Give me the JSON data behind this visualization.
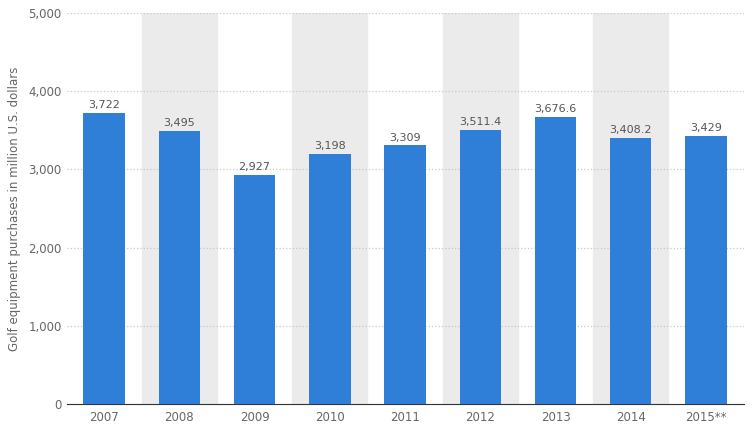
{
  "categories": [
    "2007",
    "2008",
    "2009",
    "2010",
    "2011",
    "2012",
    "2013",
    "2014",
    "2015**"
  ],
  "values": [
    3722,
    3495,
    2927,
    3198,
    3309,
    3511.4,
    3676.6,
    3408.2,
    3429
  ],
  "labels": [
    "3,722",
    "3,495",
    "2,927",
    "3,198",
    "3,309",
    "3,511.4",
    "3,676.6",
    "3,408.2",
    "3,429"
  ],
  "bar_color": "#2f7ed8",
  "background_color": "#ffffff",
  "plot_bg_color": "#ffffff",
  "bar_bg_color": "#ebebeb",
  "ylabel": "Golf equipment purchases in million U.S. dollars",
  "ylim": [
    0,
    5000
  ],
  "yticks": [
    0,
    1000,
    2000,
    3000,
    4000,
    5000
  ],
  "ytick_labels": [
    "0",
    "1,000",
    "2,000",
    "3,000",
    "4,000",
    "5,000"
  ],
  "grid_color": "#c8c8c8",
  "label_fontsize": 8,
  "tick_fontsize": 8.5,
  "ylabel_fontsize": 8.5
}
